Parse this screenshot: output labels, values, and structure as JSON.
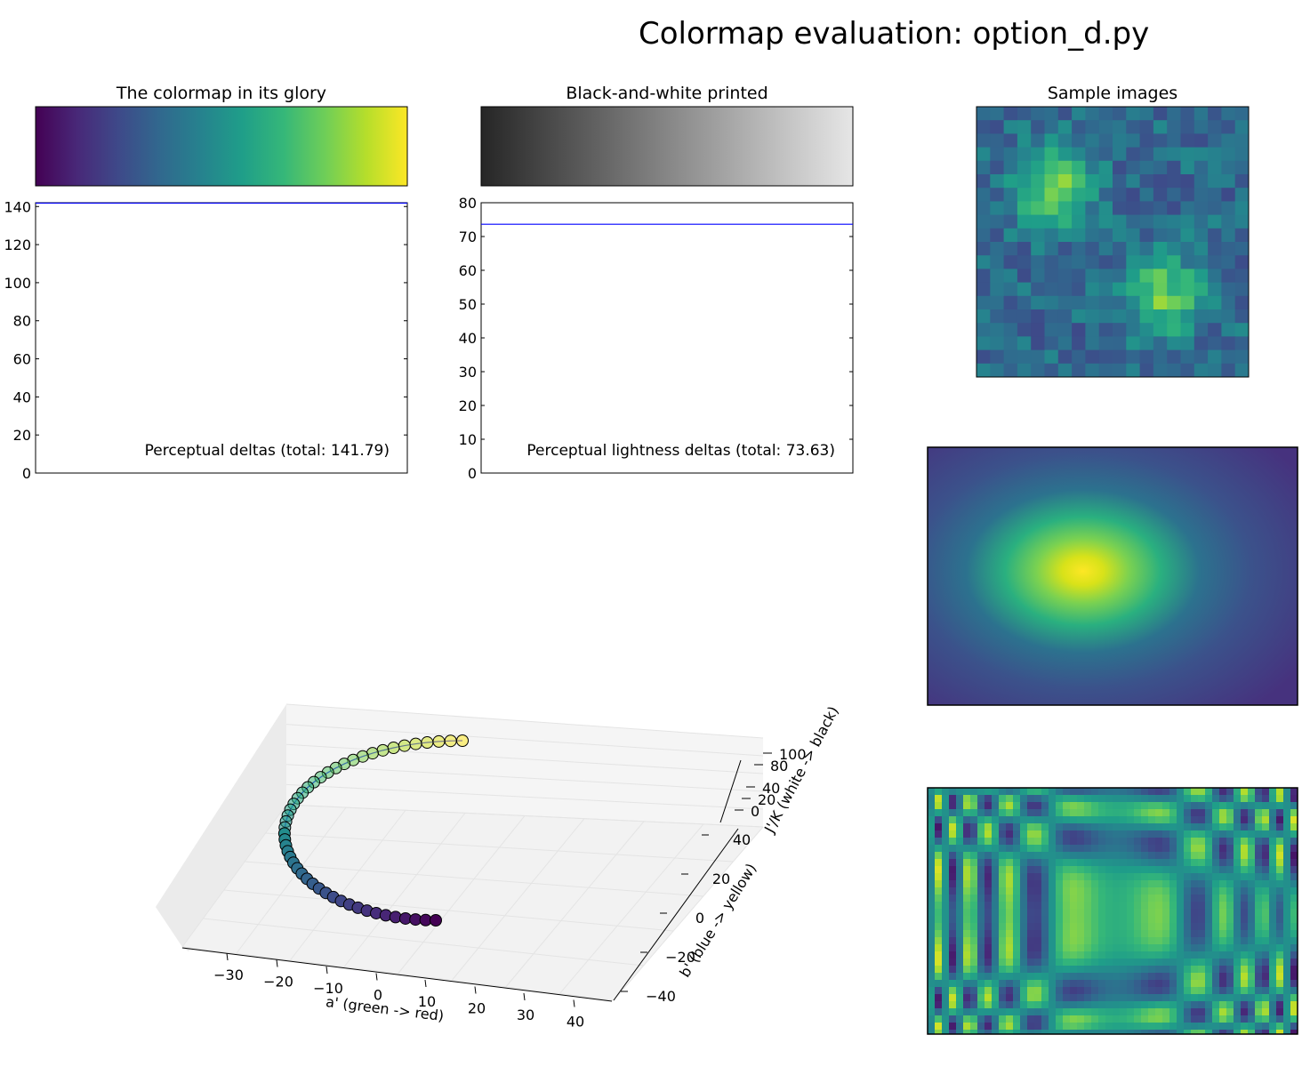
{
  "figure": {
    "title": "Colormap evaluation: option_d.py",
    "colormap_title": "The colormap in its glory",
    "bw_title": "Black-and-white printed",
    "samples_title": "Sample images"
  },
  "colors": {
    "viridis": [
      "#440154",
      "#482878",
      "#3e4989",
      "#31688e",
      "#26828e",
      "#1f9e89",
      "#35b779",
      "#6ece58",
      "#b5de2b",
      "#fde725"
    ],
    "bw": [
      "#262626",
      "#e6e6e6"
    ],
    "delta_line": "#0000ff"
  },
  "chart_data": [
    {
      "type": "line",
      "id": "perceptual-deltas",
      "annotation": "Perceptual deltas (total: 141.79)",
      "ylim": [
        0,
        142
      ],
      "yticks": [
        0,
        20,
        40,
        60,
        80,
        100,
        120,
        140
      ],
      "series": [
        {
          "x": [
            0,
            1
          ],
          "y": [
            141.79,
            141.79
          ]
        }
      ]
    },
    {
      "type": "line",
      "id": "lightness-deltas",
      "annotation": "Perceptual lightness deltas (total: 73.63)",
      "ylim": [
        0,
        80
      ],
      "yticks": [
        0,
        10,
        20,
        30,
        40,
        50,
        60,
        70,
        80
      ],
      "series": [
        {
          "x": [
            0,
            1
          ],
          "y": [
            73.63,
            73.63
          ]
        }
      ]
    },
    {
      "type": "scatter",
      "id": "ucs-3d",
      "xlabel": "a' (green -> red)",
      "ylabel": "b' (blue -> yellow)",
      "zlabel": "J'/K (white -> black)",
      "xticks": [
        -30,
        -20,
        -10,
        0,
        10,
        20,
        30,
        40
      ],
      "yticks": [
        -40,
        -20,
        0,
        20,
        40
      ],
      "zticks": [
        0,
        20,
        40,
        80,
        100
      ]
    }
  ]
}
